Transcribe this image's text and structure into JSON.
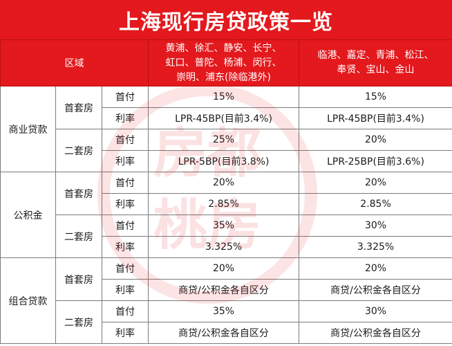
{
  "title": "上海现行房贷政策一览",
  "header": {
    "zone_label": "区域",
    "area1": [
      "黄浦、徐汇、静安、长宁、",
      "虹口、普陀、杨浦、闵行、",
      "崇明、浦东(除临港外)"
    ],
    "area2": [
      "临港、嘉定、青浦、松江、",
      "奉贤、宝山、金山"
    ]
  },
  "sections": [
    {
      "category": "商业贷款",
      "groups": [
        {
          "house": "首套房",
          "rows": [
            {
              "item": "首付",
              "v1": "15%",
              "v2": "15%"
            },
            {
              "item": "利率",
              "v1": "LPR-45BP(目前3.4%)",
              "v2": "LPR-45BP(目前3.4%)"
            }
          ]
        },
        {
          "house": "二套房",
          "rows": [
            {
              "item": "首付",
              "v1": "25%",
              "v2": "20%"
            },
            {
              "item": "利率",
              "v1": "LPR-5BP(目前3.8%)",
              "v2": "LPR-25BP(目前3.6%)"
            }
          ]
        }
      ]
    },
    {
      "category": "公积金",
      "groups": [
        {
          "house": "首套房",
          "rows": [
            {
              "item": "首付",
              "v1": "20%",
              "v2": "20%"
            },
            {
              "item": "利率",
              "v1": "2.85%",
              "v2": "2.85%"
            }
          ]
        },
        {
          "house": "二套房",
          "rows": [
            {
              "item": "首付",
              "v1": "35%",
              "v2": "30%"
            },
            {
              "item": "利率",
              "v1": "3.325%",
              "v2": "3.325%"
            }
          ]
        }
      ]
    },
    {
      "category": "组合贷款",
      "groups": [
        {
          "house": "首套房",
          "rows": [
            {
              "item": "首付",
              "v1": "20%",
              "v2": "20%"
            },
            {
              "item": "利率",
              "v1": "商贷/公积金各自区分",
              "v2": "商贷/公积金各自区分"
            }
          ]
        },
        {
          "house": "二套房",
          "rows": [
            {
              "item": "首付",
              "v1": "35%",
              "v2": "30%"
            },
            {
              "item": "利率",
              "v1": "商贷/公积金各自区分",
              "v2": "商贷/公积金各自区分"
            }
          ]
        }
      ]
    }
  ],
  "watermark": {
    "text_top": "房都",
    "text_bottom": "桃房",
    "color": "#e3191d"
  },
  "colors": {
    "header_red": "#e3191d",
    "border": "#7a7a7a"
  }
}
